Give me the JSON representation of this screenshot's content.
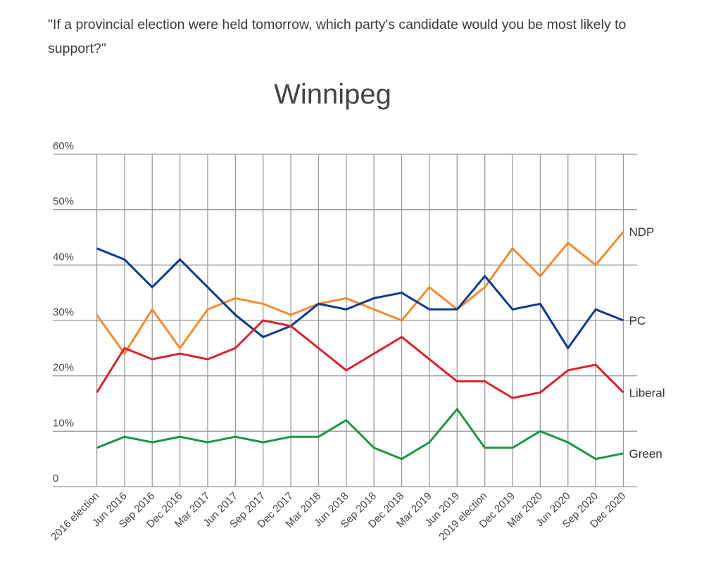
{
  "question": "\"If a provincial election were held tomorrow, which party's candidate would you be most likely to support?\"",
  "chart_data": {
    "type": "line",
    "title": "Winnipeg",
    "xlabel": "",
    "ylabel": "",
    "ylim": [
      0,
      60
    ],
    "yticks": [
      0,
      10,
      20,
      30,
      40,
      50,
      60
    ],
    "ytick_labels": [
      "0",
      "10%",
      "20%",
      "30%",
      "40%",
      "50%",
      "60%"
    ],
    "grid": true,
    "legend": "inline-right",
    "categories": [
      "2016 election",
      "Jun 2016",
      "Sep 2016",
      "Dec 2016",
      "Mar 2017",
      "Jun 2017",
      "Sep 2017",
      "Dec 2017",
      "Mar 2018",
      "Jun 2018",
      "Sep 2018",
      "Dec 2018",
      "Mar 2019",
      "Jun 2019",
      "2019 election",
      "Dec 2019",
      "Mar 2020",
      "Jun 2020",
      "Sep 2020",
      "Dec 2020"
    ],
    "series": [
      {
        "name": "NDP",
        "color": "#f58a30",
        "values": [
          31,
          24,
          32,
          25,
          32,
          34,
          33,
          31,
          33,
          34,
          32,
          30,
          36,
          32,
          36,
          43,
          38,
          44,
          40,
          46
        ]
      },
      {
        "name": "PC",
        "color": "#0d3a8c",
        "values": [
          43,
          41,
          36,
          41,
          36,
          31,
          27,
          29,
          33,
          32,
          34,
          35,
          32,
          32,
          38,
          32,
          33,
          25,
          32,
          30
        ]
      },
      {
        "name": "Liberal",
        "color": "#d9232e",
        "values": [
          17,
          25,
          23,
          24,
          23,
          25,
          30,
          29,
          25,
          21,
          24,
          27,
          23,
          19,
          19,
          16,
          17,
          21,
          22,
          17
        ]
      },
      {
        "name": "Green",
        "color": "#1a9641",
        "values": [
          7,
          9,
          8,
          9,
          8,
          9,
          8,
          9,
          9,
          12,
          7,
          5,
          8,
          14,
          7,
          7,
          10,
          8,
          5,
          6
        ]
      }
    ]
  }
}
